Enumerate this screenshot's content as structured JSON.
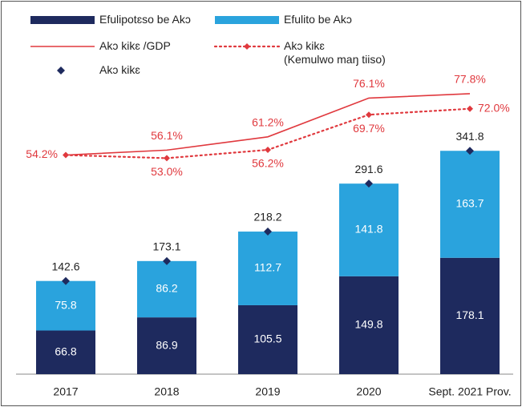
{
  "chart_data": {
    "type": "bar",
    "categories": [
      "2017",
      "2018",
      "2019",
      "2020",
      "Sept. 2021 Prov."
    ],
    "series": [
      {
        "name": "Efulipotɛso be Akɔ",
        "type": "bar",
        "color": "#1e2a5e",
        "values": [
          66.8,
          86.9,
          105.5,
          149.8,
          178.1
        ]
      },
      {
        "name": "Efulito be Akɔ",
        "type": "bar",
        "color": "#2aa3dd",
        "values": [
          75.8,
          86.2,
          112.7,
          141.8,
          163.7
        ]
      },
      {
        "name": "Akɔ kikɛ /GDP",
        "type": "line",
        "axis": "y2",
        "color": "#e0393e",
        "values": [
          54.2,
          56.1,
          61.2,
          76.1,
          77.8
        ],
        "value_labels": [
          "54.2%",
          "56.1%",
          "61.2%",
          "76.1%",
          "77.8%"
        ]
      },
      {
        "name": "Akɔ kikɛ\n(Kemulwo maŋ tiiso)",
        "type": "line",
        "dash": "dotted",
        "axis": "y2",
        "color": "#e0393e",
        "values": [
          54.2,
          53.0,
          56.2,
          69.7,
          72.0
        ],
        "value_labels": [
          null,
          "53.0%",
          "56.2%",
          "69.7%",
          "72.0%"
        ]
      },
      {
        "name": "Akɔ kikɛ",
        "type": "scatter",
        "color": "#1e2a5e",
        "values": [
          142.6,
          173.1,
          218.2,
          291.6,
          341.8
        ]
      }
    ],
    "stacked": true,
    "ylim": [
      0,
      450
    ],
    "y2lim": [
      -30,
      83
    ]
  }
}
